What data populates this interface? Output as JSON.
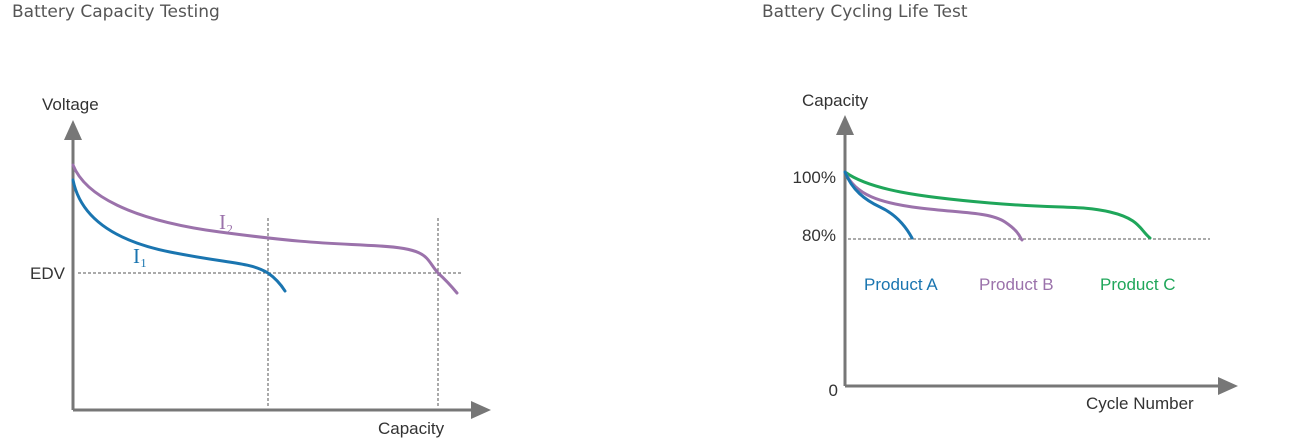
{
  "panels": [
    {
      "title": "Battery Capacity Testing",
      "y_axis_label": "Voltage",
      "x_axis_label": "Capacity",
      "edv_label": "EDV",
      "curve_labels": [
        "I₁",
        "I₂"
      ]
    },
    {
      "title": "Battery Cycling Life Test",
      "y_axis_label": "Capacity",
      "x_axis_label": "Cycle Number",
      "tick_labels": [
        "100%",
        "80%",
        "0"
      ],
      "legend": [
        "Product A",
        "Product B",
        "Product C"
      ]
    }
  ]
}
